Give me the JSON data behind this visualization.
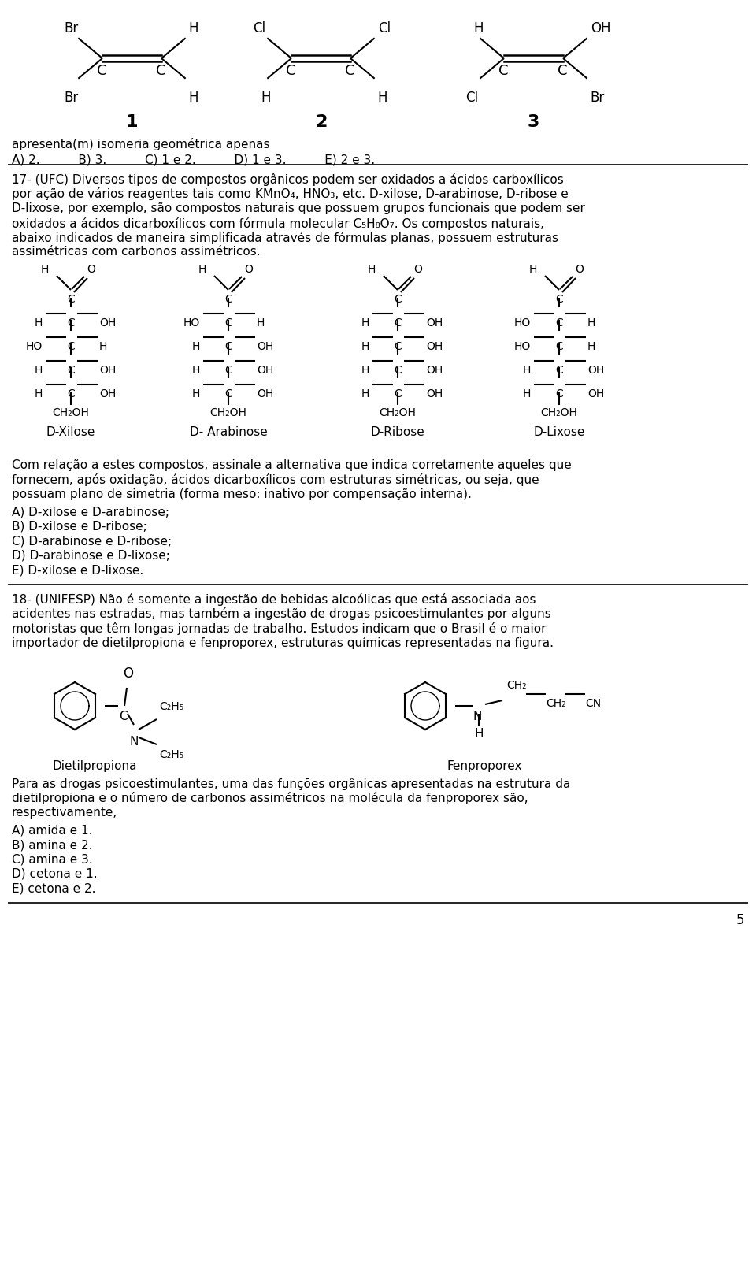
{
  "bg_color": "#ffffff",
  "text_color": "#000000",
  "page_number": "5",
  "mol1_labels": {
    "ul": "Br",
    "ll": "Br",
    "ur": "H",
    "lr": "H"
  },
  "mol2_labels": {
    "ul": "Cl",
    "ll": "H",
    "ur": "Cl",
    "lr": "H"
  },
  "mol3_labels": {
    "ul": "H",
    "ll": "Cl",
    "ur": "OH",
    "lr": "Br"
  },
  "section1_text": "apresenta(m) isomeria geométrica apenas",
  "section1_answers": "A) 2.          B) 3.          C) 1 e 2.          D) 1 e 3.          E) 2 e 3.",
  "section2_para1": "17- (UFC) Diversos tipos de compostos orgânicos podem ser oxidados a ácidos carboxílicos",
  "section2_para2": "por ação de vários reagentes tais como KMnO₄, HNO₃, etc. D-xilose, D-arabinose, D-ribose e",
  "section2_para3": "D-lixose, por exemplo, são compostos naturais que possuem grupos funcionais que podem ser",
  "section2_para4": "oxidados a ácidos dicarboxílicos com fórmula molecular C₅H₈O₇. Os compostos naturais,",
  "section2_para5": "abaixo indicados de maneira simplificada através de fórmulas planas, possuem estruturas",
  "section2_para6": "assimétricas com carbonos assimétricos.",
  "sugar_names": [
    "D-Xilose",
    "D- Arabinose",
    "D-Ribose",
    "D-Lixose"
  ],
  "xilose": {
    "left": [
      "H",
      "HO",
      "H",
      "H"
    ],
    "right": [
      "OH",
      "H",
      "OH",
      "OH"
    ]
  },
  "arabinose": {
    "left": [
      "HO",
      "H",
      "H",
      "H"
    ],
    "right": [
      "H",
      "OH",
      "OH",
      "OH"
    ]
  },
  "ribose": {
    "left": [
      "H",
      "H",
      "H",
      "H"
    ],
    "right": [
      "OH",
      "OH",
      "OH",
      "OH"
    ]
  },
  "lixose": {
    "left": [
      "HO",
      "HO",
      "H",
      "H"
    ],
    "right": [
      "H",
      "H",
      "OH",
      "OH"
    ]
  },
  "q17_text": "Com relação a estes compostos, assinale a alternativa que indica corretamente aqueles que\nfornecem, após oxidação, ácidos dicarboxílicos com estruturas simétricas, ou seja, que\npossuam plano de simetria (forma meso: inativo por compensação interna).",
  "q17_answers": "A) D-xilose e D-arabinose;\nB) D-xilose e D-ribose;\nC) D-arabinose e D-ribose;\nD) D-arabinose e D-lixose;\nE) D-xilose e D-lixose.",
  "section3_para": "18- (UNIFESP) Não é somente a ingestão de bebidas alcoólicas que está associada aos\nacidentes nas estradas, mas também a ingestão de drogas psicoestimulantes por alguns\nmotoristas que têm longas jornadas de trabalho. Estudos indicam que o Brasil é o maior\nimportador de dietilpropiona e fenproporex, estruturas químicas representadas na figura.",
  "q18_text": "Para as drogas psicoestimulantes, uma das funções orgânicas apresentadas na estrutura da\ndietilpropiona e o número de carbonos assimétricos na molécula da fenproporex são,\nrespectivamente,",
  "q18_answers": "A) amida e 1.\nB) amina e 2.\nC) amina e 3.\nD) cetona e 1.\nE) cetona e 2."
}
